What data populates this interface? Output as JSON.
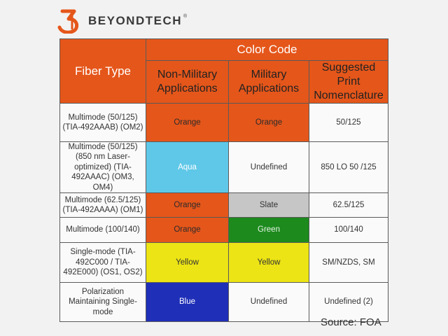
{
  "brand": {
    "name": "BEYONDTECH",
    "mark": "®"
  },
  "table": {
    "header": {
      "fiber_type": "Fiber Type",
      "color_code": "Color Code",
      "non_military": "Non-Military Applications",
      "military": "Military Applications",
      "nomenclature": "Suggested Print Nomenclature"
    },
    "rows": [
      {
        "type": "Multimode (50/125) (TIA-492AAAB) (OM2)",
        "non_military": "Orange",
        "military": "Orange",
        "nomenclature": "50/125"
      },
      {
        "type": "Multimode (50/125) (850 nm Laser-optimized) (TIA-492AAAC) (OM3, OM4)",
        "non_military": "Aqua",
        "military": "Undefined",
        "nomenclature": "850 LO 50 /125"
      },
      {
        "type": "Multimode (62.5/125) (TIA-492AAAA) (OM1)",
        "non_military": "Orange",
        "military": "Slate",
        "nomenclature": "62.5/125"
      },
      {
        "type": "Multimode (100/140)",
        "non_military": "Orange",
        "military": "Green",
        "nomenclature": "100/140"
      },
      {
        "type": "Single-mode (TIA-492C000 / TIA-492E000) (OS1, OS2)",
        "non_military": "Yellow",
        "military": "Yellow",
        "nomenclature": "SM/NZDS, SM"
      },
      {
        "type": "Polarization Maintaining Single-mode",
        "non_military": "Blue",
        "military": "Undefined",
        "nomenclature": "Undefined (2)"
      }
    ]
  },
  "source": "Source: FOA",
  "colors": {
    "orange": "#e5561a",
    "aqua": "#5fc8e8",
    "slate": "#c6c6c6",
    "green": "#1d8a1d",
    "yellow": "#ece414",
    "blue": "#1f2fb8",
    "background": "#f2f2f2"
  }
}
